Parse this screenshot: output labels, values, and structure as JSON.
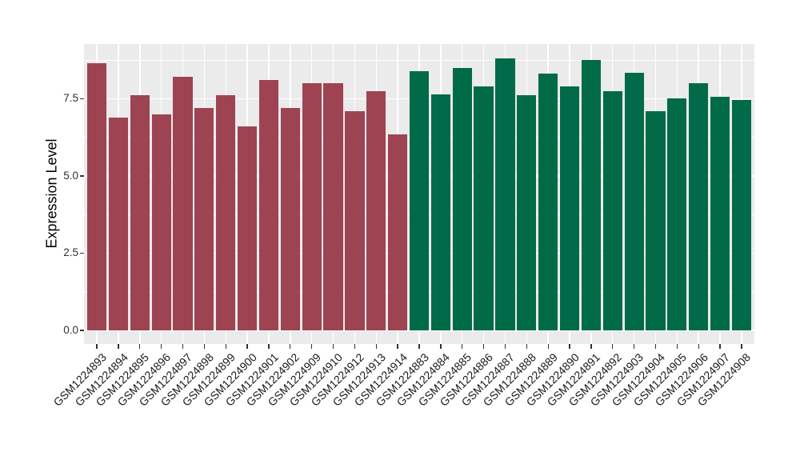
{
  "chart_data": {
    "type": "bar",
    "title": "",
    "xlabel": "",
    "ylabel": "Expression Level",
    "ylim": [
      -0.44,
      9.27
    ],
    "y_ticks": [
      {
        "label": "0.0",
        "value": 0
      },
      {
        "label": "2.5",
        "value": 2.5
      },
      {
        "label": "5.0",
        "value": 5
      },
      {
        "label": "7.5",
        "value": 7.5
      }
    ],
    "y_minor_ticks": [
      1.25,
      3.75,
      6.25,
      8.75
    ],
    "grid": "on",
    "legend_position": "none",
    "bar_width_fraction": 0.9,
    "colors": {
      "figure_bg": "#FFFFFF",
      "panel_bg": "#EBEBEB",
      "gridline": "#FFFFFF",
      "axis_text": "#303030",
      "axis_title": "#000000",
      "tick_mark": "#333333",
      "group_1": "#9E4352",
      "group_2": "#016A48"
    },
    "series": [
      {
        "name": "group-1",
        "color": "#9E4352",
        "categories": [
          "GSM1224893",
          "GSM1224894",
          "GSM1224895",
          "GSM1224896",
          "GSM1224897",
          "GSM1224898",
          "GSM1224899",
          "GSM1224900",
          "GSM1224901",
          "GSM1224902",
          "GSM1224909",
          "GSM1224910",
          "GSM1224912",
          "GSM1224913",
          "GSM1224914"
        ],
        "values": [
          8.65,
          6.9,
          7.6,
          7.0,
          8.2,
          7.2,
          7.6,
          6.6,
          8.1,
          7.2,
          8.0,
          8.0,
          7.1,
          7.75,
          6.35
        ]
      },
      {
        "name": "group-2",
        "color": "#016A48",
        "categories": [
          "GSM1224883",
          "GSM1224884",
          "GSM1224885",
          "GSM1224886",
          "GSM1224887",
          "GSM1224888",
          "GSM1224889",
          "GSM1224890",
          "GSM1224891",
          "GSM1224892",
          "GSM1224903",
          "GSM1224904",
          "GSM1224905",
          "GSM1224906",
          "GSM1224907",
          "GSM1224908"
        ],
        "values": [
          8.4,
          7.65,
          8.5,
          7.9,
          8.8,
          7.6,
          8.3,
          7.9,
          8.75,
          7.75,
          8.35,
          7.1,
          7.5,
          8.0,
          7.55,
          7.45
        ]
      }
    ]
  }
}
